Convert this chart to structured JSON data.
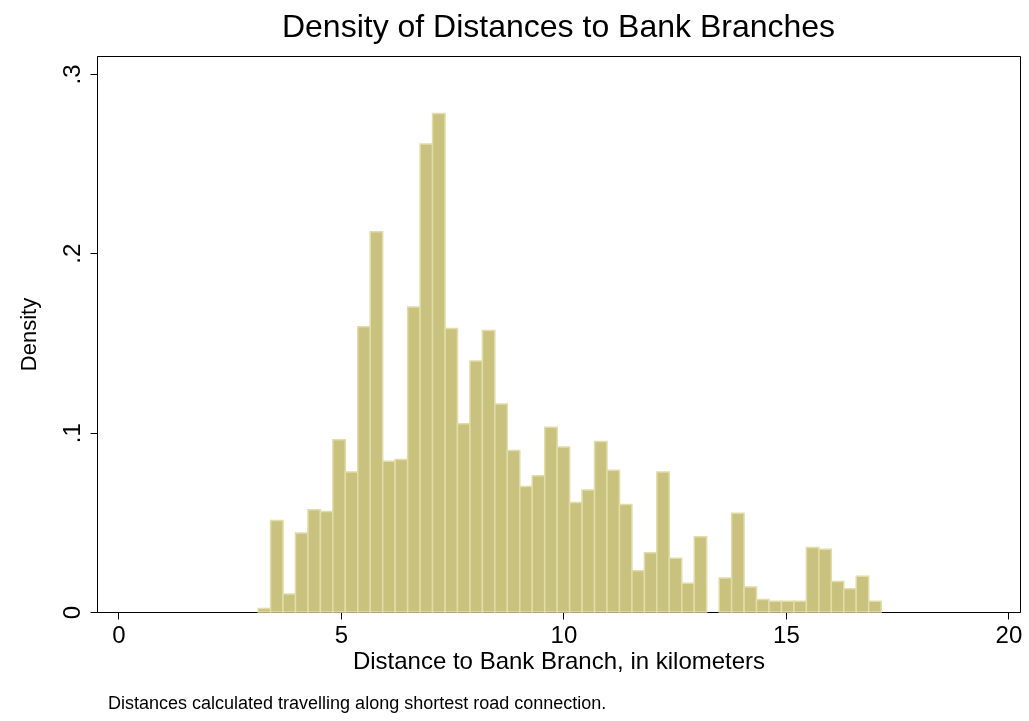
{
  "chart_data": {
    "type": "histogram",
    "title": "Density of Distances to Bank Branches",
    "xlabel": "Distance to Bank Branch, in kilometers",
    "ylabel": "Density",
    "annotations": [
      "Distances calculated travelling along shortest road connection."
    ],
    "bins": [
      3.14,
      3.42,
      3.7,
      3.98,
      4.26,
      4.54,
      4.82,
      5.1,
      5.38,
      5.66,
      5.94,
      6.22,
      6.5,
      6.78,
      7.06,
      7.34,
      7.62,
      7.9,
      8.18,
      8.46,
      8.74,
      9.02,
      9.3,
      9.58,
      9.86,
      10.14,
      10.42,
      10.7,
      10.98,
      11.26,
      11.54,
      11.82,
      12.1,
      12.38,
      12.66,
      12.94,
      13.22,
      13.5,
      13.78,
      14.06,
      14.34,
      14.62,
      14.9,
      15.18,
      15.46,
      15.74,
      16.02,
      16.3,
      16.58,
      16.86,
      17.14
    ],
    "values": [
      0.002,
      0.051,
      0.01,
      0.044,
      0.057,
      0.056,
      0.096,
      0.078,
      0.159,
      0.212,
      0.084,
      0.085,
      0.17,
      0.261,
      0.278,
      0.158,
      0.105,
      0.14,
      0.157,
      0.116,
      0.09,
      0.07,
      0.076,
      0.103,
      0.092,
      0.061,
      0.068,
      0.095,
      0.079,
      0.06,
      0.023,
      0.033,
      0.078,
      0.03,
      0.016,
      0.042,
      0,
      0.019,
      0.055,
      0.014,
      0.007,
      0.006,
      0.006,
      0.006,
      0.036,
      0.035,
      0.017,
      0.013,
      0.02,
      0.006
    ],
    "color": "#c9c27f",
    "xlim": [
      -0.48,
      20.26
    ],
    "ylim": [
      0,
      0.31
    ],
    "xticks": [
      0,
      5,
      10,
      15,
      20
    ],
    "yticks": [
      0,
      {
        "value": 0.1,
        "label": ".1"
      },
      {
        "value": 0.2,
        "label": ".2"
      },
      {
        "value": 0.3,
        "label": ".3"
      }
    ],
    "grid": false
  }
}
